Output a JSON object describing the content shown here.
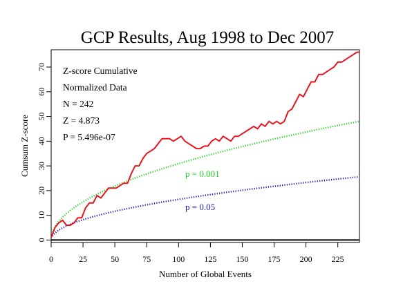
{
  "chart_data": {
    "type": "line",
    "title": "GCP Results, Aug 1998 to Dec 2007",
    "xlabel": "Number of Global Events",
    "ylabel": "Cumsum Z-score",
    "xlim": [
      0,
      242
    ],
    "ylim": [
      -1,
      77
    ],
    "x_ticks": [
      0,
      25,
      50,
      75,
      100,
      125,
      150,
      175,
      200,
      225
    ],
    "y_ticks": [
      0,
      10,
      20,
      30,
      40,
      50,
      60,
      70
    ],
    "grid": false,
    "legend": "none",
    "annotations": [
      "Z-score Cumulative",
      "Normalized Data",
      "N = 242",
      "Z = 4.873",
      "P = 5.496e-07"
    ],
    "series": [
      {
        "color": "#e8141b",
        "style": "solid",
        "x": [
          0,
          3,
          6,
          9,
          12,
          15,
          18,
          21,
          24,
          27,
          30,
          33,
          36,
          39,
          42,
          45,
          48,
          51,
          54,
          57,
          60,
          63,
          66,
          69,
          72,
          75,
          78,
          81,
          84,
          87,
          90,
          93,
          96,
          99,
          102,
          105,
          108,
          111,
          114,
          117,
          120,
          123,
          126,
          129,
          132,
          135,
          138,
          141,
          144,
          147,
          150,
          153,
          156,
          159,
          162,
          165,
          168,
          171,
          174,
          177,
          180,
          183,
          186,
          189,
          192,
          195,
          198,
          201,
          204,
          207,
          210,
          213,
          216,
          219,
          222,
          225,
          228,
          231,
          234,
          237,
          240,
          242
        ],
        "y": [
          1,
          5,
          7,
          8,
          6,
          6,
          7,
          9,
          9,
          13,
          15,
          15,
          18,
          17,
          19,
          21,
          21,
          21,
          22,
          23,
          23,
          27,
          30,
          30,
          33,
          35,
          36,
          37,
          39,
          41,
          41,
          41,
          40,
          41,
          42,
          40,
          39,
          38,
          37,
          37,
          38,
          38,
          40,
          41,
          40,
          42,
          41,
          40,
          42,
          42,
          43,
          44,
          45,
          46,
          45,
          47,
          46,
          48,
          47,
          48,
          47,
          48,
          52,
          53,
          56,
          59,
          58,
          61,
          64,
          64,
          67,
          67,
          68,
          69,
          70,
          72,
          72,
          73,
          74,
          75,
          76,
          76
        ]
      },
      {
        "name": "p = 0.001",
        "color": "#22d422",
        "style": "dotted",
        "formula": "3.090*sqrt(n)",
        "x": [
          1,
          2,
          4,
          6,
          9,
          12,
          16,
          20,
          25,
          30,
          36,
          42,
          49,
          56,
          64,
          72,
          81,
          90,
          100,
          110,
          121,
          132,
          144,
          156,
          169,
          182,
          196,
          210,
          225,
          242
        ],
        "y": [
          3.09,
          4.37,
          6.18,
          7.57,
          9.27,
          10.7,
          12.36,
          13.82,
          15.45,
          16.92,
          18.54,
          20.03,
          21.63,
          23.12,
          24.72,
          26.22,
          27.81,
          29.31,
          30.9,
          32.41,
          33.99,
          35.5,
          37.08,
          38.59,
          40.17,
          41.69,
          43.26,
          44.78,
          46.35,
          48.07
        ]
      },
      {
        "name": "p = 0.05",
        "color": "#1a1ab4",
        "style": "dotted",
        "formula": "1.645*sqrt(n)",
        "x": [
          1,
          2,
          4,
          6,
          9,
          12,
          16,
          20,
          25,
          30,
          36,
          42,
          49,
          56,
          64,
          72,
          81,
          90,
          100,
          110,
          121,
          132,
          144,
          156,
          169,
          182,
          196,
          210,
          225,
          242
        ],
        "y": [
          1.65,
          2.33,
          3.29,
          4.03,
          4.94,
          5.7,
          6.58,
          7.36,
          8.23,
          9.01,
          9.87,
          10.66,
          11.52,
          12.31,
          13.16,
          13.96,
          14.81,
          15.61,
          16.45,
          17.25,
          18.1,
          18.9,
          19.74,
          20.55,
          21.39,
          22.19,
          23.03,
          23.84,
          24.68,
          25.59
        ]
      },
      {
        "color": "#000000",
        "style": "solid",
        "x": [
          0,
          242
        ],
        "y": [
          0,
          0
        ]
      }
    ]
  }
}
